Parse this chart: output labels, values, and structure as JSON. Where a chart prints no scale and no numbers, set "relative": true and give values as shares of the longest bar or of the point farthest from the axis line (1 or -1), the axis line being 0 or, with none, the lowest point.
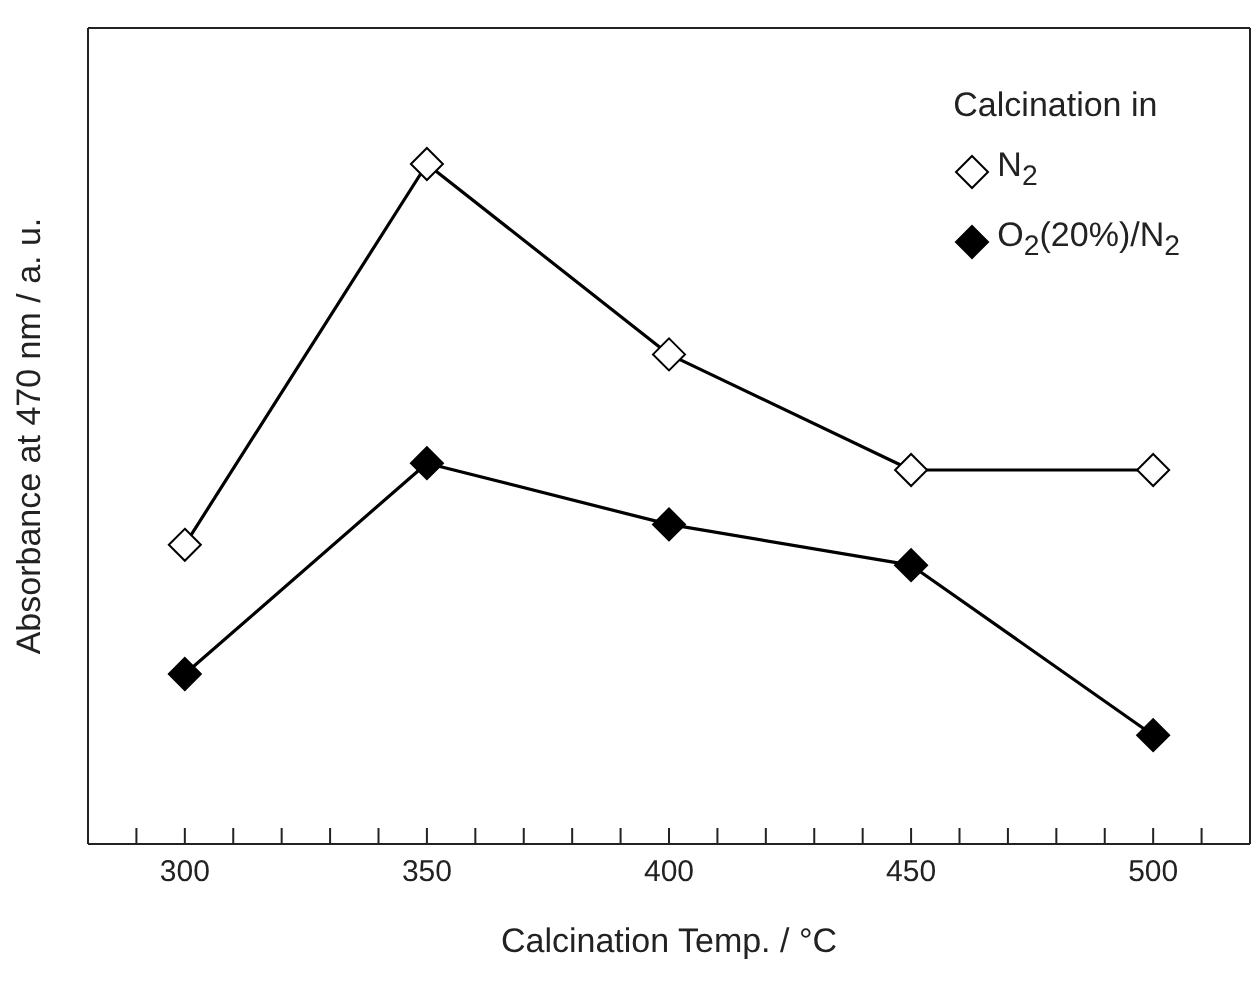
{
  "chart_data": {
    "type": "line",
    "relative": true,
    "xlabel": "Calcination Temp. / °C",
    "ylabel": "Absorbance at 470 nm / a. u.",
    "legend_title": "Calcination in",
    "legend": "top right",
    "marker": "diamond",
    "line_style": "solid",
    "x": [
      300,
      350,
      400,
      450,
      500
    ],
    "xlim": [
      280,
      520
    ],
    "xticks": [
      {
        "value": 290,
        "label": null
      },
      300,
      {
        "value": 310,
        "label": null
      },
      {
        "value": 320,
        "label": null
      },
      {
        "value": 330,
        "label": null
      },
      {
        "value": 340,
        "label": null
      },
      350,
      {
        "value": 360,
        "label": null
      },
      {
        "value": 370,
        "label": null
      },
      {
        "value": 380,
        "label": null
      },
      {
        "value": 390,
        "label": null
      },
      400,
      {
        "value": 410,
        "label": null
      },
      {
        "value": 420,
        "label": null
      },
      {
        "value": 430,
        "label": null
      },
      {
        "value": 440,
        "label": null
      },
      450,
      {
        "value": 460,
        "label": null
      },
      {
        "value": 470,
        "label": null
      },
      {
        "value": 480,
        "label": null
      },
      {
        "value": 490,
        "label": null
      },
      500,
      {
        "value": 510,
        "label": null
      }
    ],
    "series": [
      {
        "name": "N$_{2}$",
        "color": "#000000",
        "values": [
          0.44,
          1,
          0.72,
          0.55,
          0.55
        ]
      },
      {
        "name": "O$_{2}$(20%)/N$_{2}$",
        "color": "#000000",
        "values": [
          0.25,
          0.56,
          0.47,
          0.41,
          0.16
        ]
      }
    ]
  }
}
